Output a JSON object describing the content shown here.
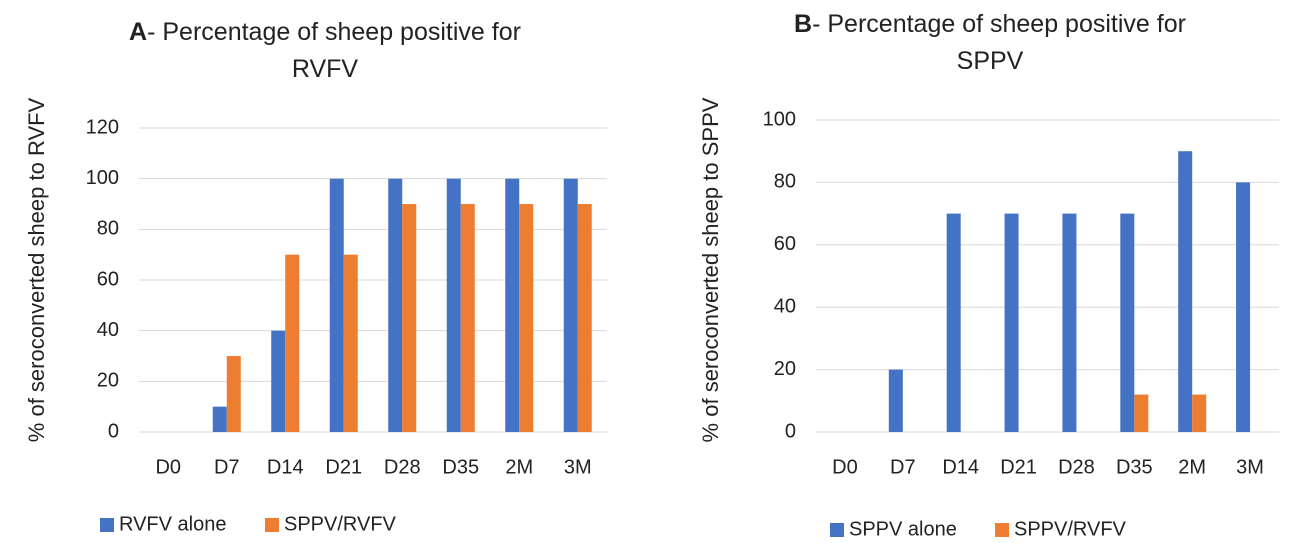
{
  "chart_data": [
    {
      "type": "bar",
      "title": "A- Percentage of sheep positive for RVFV",
      "y_label": "% of seroconverted sheep to RVFV",
      "categories": [
        "D0",
        "D7",
        "D14",
        "D21",
        "D28",
        "D35",
        "2M",
        "3M"
      ],
      "series": [
        {
          "name": "RVFV alone",
          "color": "#4472c4",
          "values": [
            0,
            10,
            40,
            100,
            100,
            100,
            100,
            100
          ]
        },
        {
          "name": "SPPV/RVFV",
          "color": "#ed7d31",
          "values": [
            0,
            30,
            70,
            70,
            90,
            90,
            90,
            90
          ]
        }
      ],
      "ylim": [
        0,
        120
      ],
      "yticks": [
        0,
        20,
        40,
        60,
        80,
        100,
        120
      ],
      "grid": true,
      "legend": "bottom"
    },
    {
      "type": "bar",
      "title": "B- Percentage of sheep positive for SPPV",
      "y_label": "% of seroconverted sheep to SPPV",
      "categories": [
        "D0",
        "D7",
        "D14",
        "D21",
        "D28",
        "D35",
        "2M",
        "3M"
      ],
      "series": [
        {
          "name": "SPPV alone",
          "color": "#4472c4",
          "values": [
            0,
            20,
            70,
            70,
            70,
            70,
            90,
            80
          ]
        },
        {
          "name": "SPPV/RVFV",
          "color": "#ed7d31",
          "values": [
            0,
            0,
            0,
            0,
            0,
            12,
            12,
            0
          ]
        }
      ],
      "ylim": [
        0,
        100
      ],
      "yticks": [
        0,
        20,
        40,
        60,
        80,
        100
      ],
      "grid": true,
      "legend": "bottom"
    }
  ]
}
